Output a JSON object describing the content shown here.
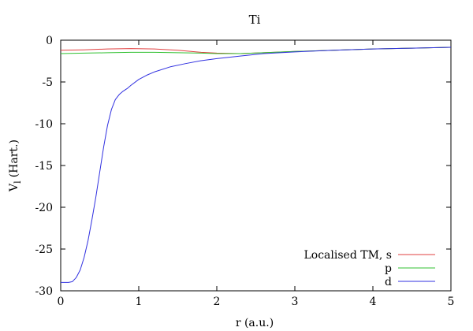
{
  "chart_data": {
    "type": "line",
    "title": "Ti",
    "xlabel": "r (a.u.)",
    "ylabel": "V",
    "ylabel_sub": "l",
    "ylabel_unit": "(Hart.)",
    "xlim": [
      0,
      5
    ],
    "ylim": [
      -30,
      0
    ],
    "xticks": [
      0,
      1,
      2,
      3,
      4,
      5
    ],
    "yticks": [
      0,
      -5,
      -10,
      -15,
      -20,
      -25,
      -30
    ],
    "grid": false,
    "legend_position": "bottom-right",
    "series": [
      {
        "name": "Localised TM, s",
        "color": "#e04040",
        "points": [
          [
            0,
            -1.2
          ],
          [
            0.3,
            -1.15
          ],
          [
            0.6,
            -1.05
          ],
          [
            0.9,
            -1.0
          ],
          [
            1.2,
            -1.05
          ],
          [
            1.5,
            -1.2
          ],
          [
            1.8,
            -1.45
          ],
          [
            2.0,
            -1.55
          ],
          [
            2.3,
            -1.6
          ],
          [
            2.6,
            -1.5
          ],
          [
            3.0,
            -1.35
          ],
          [
            3.5,
            -1.2
          ],
          [
            4.0,
            -1.05
          ],
          [
            4.5,
            -0.95
          ],
          [
            5.0,
            -0.85
          ]
        ]
      },
      {
        "name": "p",
        "color": "#30c030",
        "points": [
          [
            0,
            -1.6
          ],
          [
            0.3,
            -1.55
          ],
          [
            0.6,
            -1.5
          ],
          [
            0.9,
            -1.45
          ],
          [
            1.2,
            -1.45
          ],
          [
            1.5,
            -1.5
          ],
          [
            1.8,
            -1.55
          ],
          [
            2.0,
            -1.6
          ],
          [
            2.3,
            -1.6
          ],
          [
            2.6,
            -1.5
          ],
          [
            3.0,
            -1.35
          ],
          [
            3.5,
            -1.2
          ],
          [
            4.0,
            -1.05
          ],
          [
            4.5,
            -0.95
          ],
          [
            5.0,
            -0.85
          ]
        ]
      },
      {
        "name": "d",
        "color": "#3030e0",
        "points": [
          [
            0,
            -29.0
          ],
          [
            0.1,
            -29.0
          ],
          [
            0.15,
            -28.9
          ],
          [
            0.2,
            -28.4
          ],
          [
            0.25,
            -27.5
          ],
          [
            0.3,
            -26.0
          ],
          [
            0.35,
            -24.0
          ],
          [
            0.4,
            -21.5
          ],
          [
            0.45,
            -18.8
          ],
          [
            0.5,
            -15.8
          ],
          [
            0.55,
            -12.8
          ],
          [
            0.6,
            -10.2
          ],
          [
            0.65,
            -8.3
          ],
          [
            0.7,
            -7.1
          ],
          [
            0.75,
            -6.5
          ],
          [
            0.8,
            -6.1
          ],
          [
            0.85,
            -5.8
          ],
          [
            0.9,
            -5.4
          ],
          [
            1.0,
            -4.7
          ],
          [
            1.1,
            -4.2
          ],
          [
            1.2,
            -3.8
          ],
          [
            1.4,
            -3.2
          ],
          [
            1.6,
            -2.8
          ],
          [
            1.8,
            -2.45
          ],
          [
            2.0,
            -2.2
          ],
          [
            2.3,
            -1.9
          ],
          [
            2.6,
            -1.6
          ],
          [
            3.0,
            -1.4
          ],
          [
            3.5,
            -1.2
          ],
          [
            4.0,
            -1.05
          ],
          [
            4.5,
            -0.95
          ],
          [
            5.0,
            -0.85
          ]
        ]
      }
    ]
  }
}
